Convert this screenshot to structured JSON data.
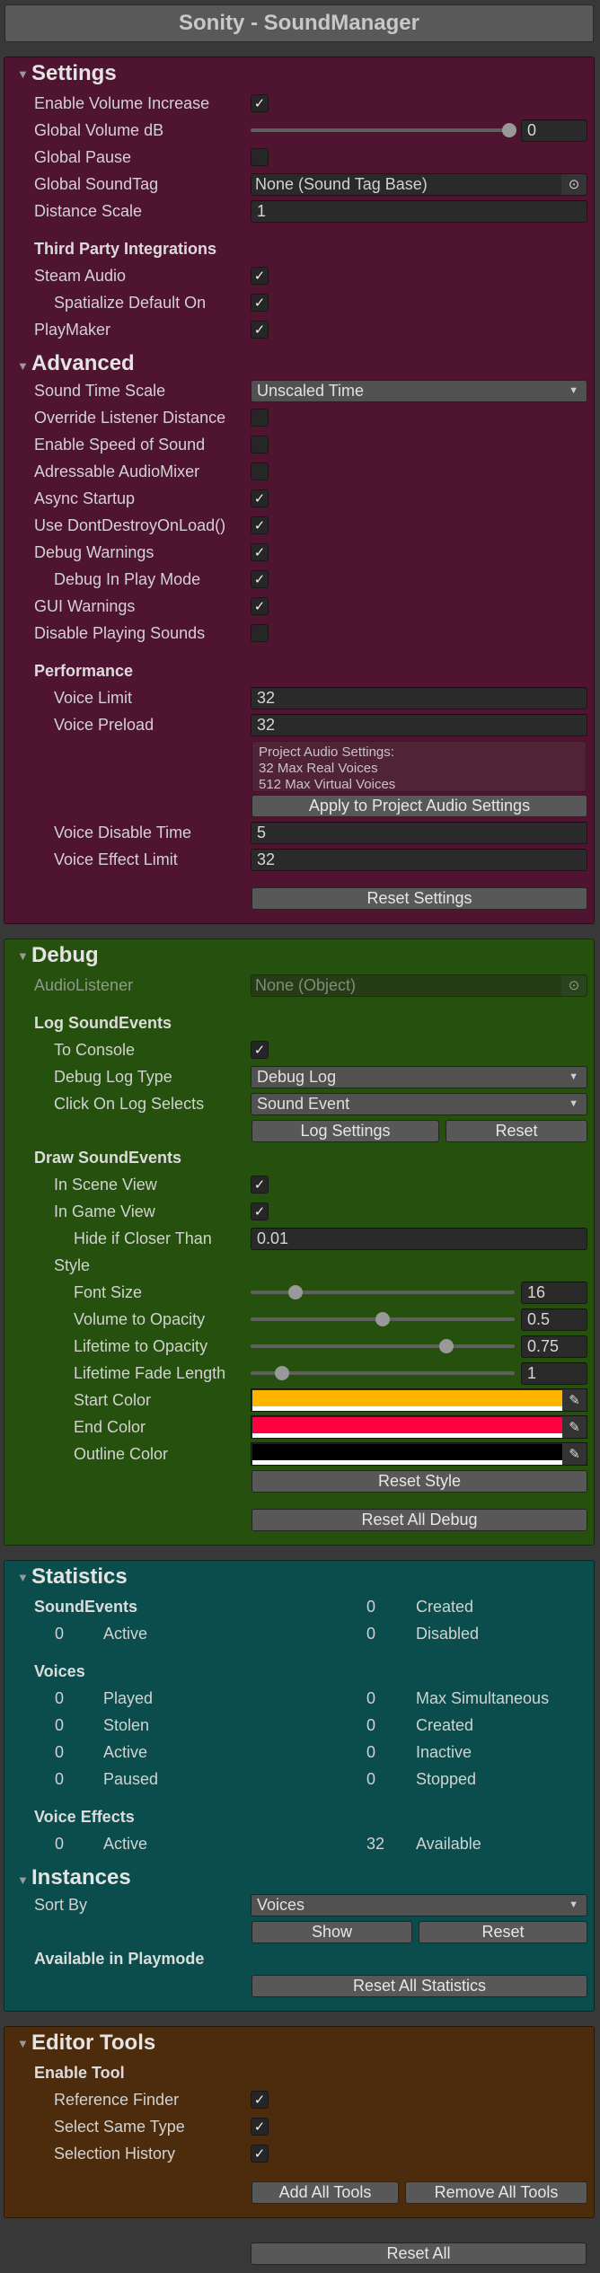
{
  "title": "Sonity - SoundManager",
  "reset_all_label": "Reset All",
  "icons": {
    "foldout": "triangle-down-icon",
    "checkmark": "checkmark-icon",
    "object_picker": "target-circle-icon",
    "dropdown": "chevron-down-icon",
    "eyedropper": "eyedropper-icon"
  },
  "panels": [
    {
      "title": "Settings",
      "color": "#4f142f",
      "rows": [
        {
          "type": "check",
          "label": "Enable Volume Increase",
          "indent": 0,
          "checked": true
        },
        {
          "type": "slider",
          "label": "Global Volume dB",
          "indent": 0,
          "value": "0",
          "position": 0.98
        },
        {
          "type": "check",
          "label": "Global Pause",
          "indent": 0,
          "checked": false
        },
        {
          "type": "object",
          "label": "Global SoundTag",
          "value": "None (Sound Tag Base)",
          "disabled": false
        },
        {
          "type": "field",
          "label": "Distance Scale",
          "indent": 0,
          "value": "1"
        },
        {
          "type": "subheader",
          "label": "Third Party Integrations"
        },
        {
          "type": "check",
          "label": "Steam Audio",
          "indent": 0,
          "checked": true
        },
        {
          "type": "check",
          "label": "Spatialize Default On",
          "indent": 1,
          "checked": true
        },
        {
          "type": "check",
          "label": "PlayMaker",
          "indent": 0,
          "checked": true
        },
        {
          "type": "section",
          "label": "Advanced"
        },
        {
          "type": "dropdown",
          "label": "Sound Time Scale",
          "indent": 0,
          "value": "Unscaled Time"
        },
        {
          "type": "check",
          "label": "Override Listener Distance",
          "indent": 0,
          "checked": false
        },
        {
          "type": "check",
          "label": "Enable Speed of Sound",
          "indent": 0,
          "checked": false
        },
        {
          "type": "check",
          "label": "Adressable AudioMixer",
          "indent": 0,
          "checked": false
        },
        {
          "type": "check",
          "label": "Async Startup",
          "indent": 0,
          "checked": true
        },
        {
          "type": "check",
          "label": "Use DontDestroyOnLoad()",
          "indent": 0,
          "checked": true
        },
        {
          "type": "check",
          "label": "Debug Warnings",
          "indent": 0,
          "checked": true
        },
        {
          "type": "check",
          "label": "Debug In Play Mode",
          "indent": 1,
          "checked": true
        },
        {
          "type": "check",
          "label": "GUI Warnings",
          "indent": 0,
          "checked": true
        },
        {
          "type": "check",
          "label": "Disable Playing Sounds",
          "indent": 0,
          "checked": false
        },
        {
          "type": "subheader",
          "label": "Performance"
        },
        {
          "type": "field",
          "label": "Voice Limit",
          "indent": 1,
          "value": "32"
        },
        {
          "type": "field",
          "label": "Voice Preload",
          "indent": 1,
          "value": "32"
        },
        {
          "type": "info",
          "lines": [
            "Project Audio Settings:",
            "32 Max Real Voices",
            "512 Max Virtual Voices"
          ]
        },
        {
          "type": "button",
          "label": "Apply to Project Audio Settings"
        },
        {
          "type": "field",
          "label": "Voice Disable Time",
          "indent": 1,
          "value": "5"
        },
        {
          "type": "field",
          "label": "Voice Effect Limit",
          "indent": 1,
          "value": "32"
        },
        {
          "type": "action",
          "label": "Reset Settings"
        }
      ]
    },
    {
      "title": "Debug",
      "color": "#25500d",
      "rows": [
        {
          "type": "object",
          "label": "AudioListener",
          "value": "None (Object)",
          "disabled": true
        },
        {
          "type": "subheader",
          "label": "Log SoundEvents"
        },
        {
          "type": "check",
          "label": "To Console",
          "indent": 1,
          "checked": true
        },
        {
          "type": "dropdown",
          "label": "Debug Log Type",
          "indent": 1,
          "value": "Debug Log"
        },
        {
          "type": "dropdown",
          "label": "Click On Log Selects",
          "indent": 1,
          "value": "Sound Event"
        },
        {
          "type": "buttons2",
          "labels": [
            "Log Settings",
            "Reset"
          ],
          "split": 0.57
        },
        {
          "type": "subheader",
          "label": "Draw SoundEvents"
        },
        {
          "type": "check",
          "label": "In Scene View",
          "indent": 1,
          "checked": true
        },
        {
          "type": "check",
          "label": "In Game View",
          "indent": 1,
          "checked": true
        },
        {
          "type": "field",
          "label": "Hide if Closer Than",
          "indent": 2,
          "value": "0.01"
        },
        {
          "type": "plain",
          "label": "Style",
          "indent": 1
        },
        {
          "type": "slider",
          "label": "Font Size",
          "indent": 2,
          "value": "16",
          "position": 0.17
        },
        {
          "type": "slider",
          "label": "Volume to Opacity",
          "indent": 2,
          "value": "0.5",
          "position": 0.5
        },
        {
          "type": "slider",
          "label": "Lifetime to Opacity",
          "indent": 2,
          "value": "0.75",
          "position": 0.74
        },
        {
          "type": "slider",
          "label": "Lifetime Fade Length",
          "indent": 2,
          "value": "1",
          "position": 0.12
        },
        {
          "type": "color",
          "label": "Start Color",
          "indent": 2,
          "color": "#ffb400"
        },
        {
          "type": "color",
          "label": "End Color",
          "indent": 2,
          "color": "#ff0040"
        },
        {
          "type": "color",
          "label": "Outline Color",
          "indent": 2,
          "color": "#000000"
        },
        {
          "type": "button",
          "label": "Reset Style"
        },
        {
          "type": "action",
          "label": "Reset All Debug"
        }
      ]
    },
    {
      "title": "Statistics",
      "color": "#0b4d4d",
      "rows": [
        {
          "type": "subheader",
          "label": "SoundEvents",
          "right": {
            "value": "0",
            "label": "Created"
          }
        },
        {
          "type": "stat",
          "left": {
            "value": "0",
            "label": "Active"
          },
          "right": {
            "value": "0",
            "label": "Disabled"
          }
        },
        {
          "type": "subheader",
          "label": "Voices"
        },
        {
          "type": "stat",
          "left": {
            "value": "0",
            "label": "Played"
          },
          "right": {
            "value": "0",
            "label": "Max Simultaneous"
          }
        },
        {
          "type": "stat",
          "left": {
            "value": "0",
            "label": "Stolen"
          },
          "right": {
            "value": "0",
            "label": "Created"
          }
        },
        {
          "type": "stat",
          "left": {
            "value": "0",
            "label": "Active"
          },
          "right": {
            "value": "0",
            "label": "Inactive"
          }
        },
        {
          "type": "stat",
          "left": {
            "value": "0",
            "label": "Paused"
          },
          "right": {
            "value": "0",
            "label": "Stopped"
          }
        },
        {
          "type": "subheader",
          "label": "Voice Effects"
        },
        {
          "type": "stat",
          "left": {
            "value": "0",
            "label": "Active"
          },
          "right": {
            "value": "32",
            "label": "Available"
          }
        },
        {
          "type": "section",
          "label": "Instances"
        },
        {
          "type": "dropdown",
          "label": "Sort By",
          "indent": 0,
          "value": "Voices"
        },
        {
          "type": "buttons2",
          "labels": [
            "Show",
            "Reset"
          ],
          "split": 0.49
        },
        {
          "type": "subheader",
          "label": "Available in Playmode"
        },
        {
          "type": "button",
          "label": "Reset All Statistics"
        }
      ]
    },
    {
      "title": "Editor Tools",
      "color": "#4d2c0e",
      "rows": [
        {
          "type": "subheader",
          "label": "Enable Tool"
        },
        {
          "type": "check",
          "label": "Reference Finder",
          "indent": 1,
          "checked": true
        },
        {
          "type": "check",
          "label": "Select Same Type",
          "indent": 1,
          "checked": true
        },
        {
          "type": "check",
          "label": "Selection History",
          "indent": 1,
          "checked": true
        },
        {
          "type": "buttons2",
          "labels": [
            "Add All Tools",
            "Remove All Tools"
          ],
          "split": 0.45,
          "action": true
        }
      ]
    }
  ]
}
